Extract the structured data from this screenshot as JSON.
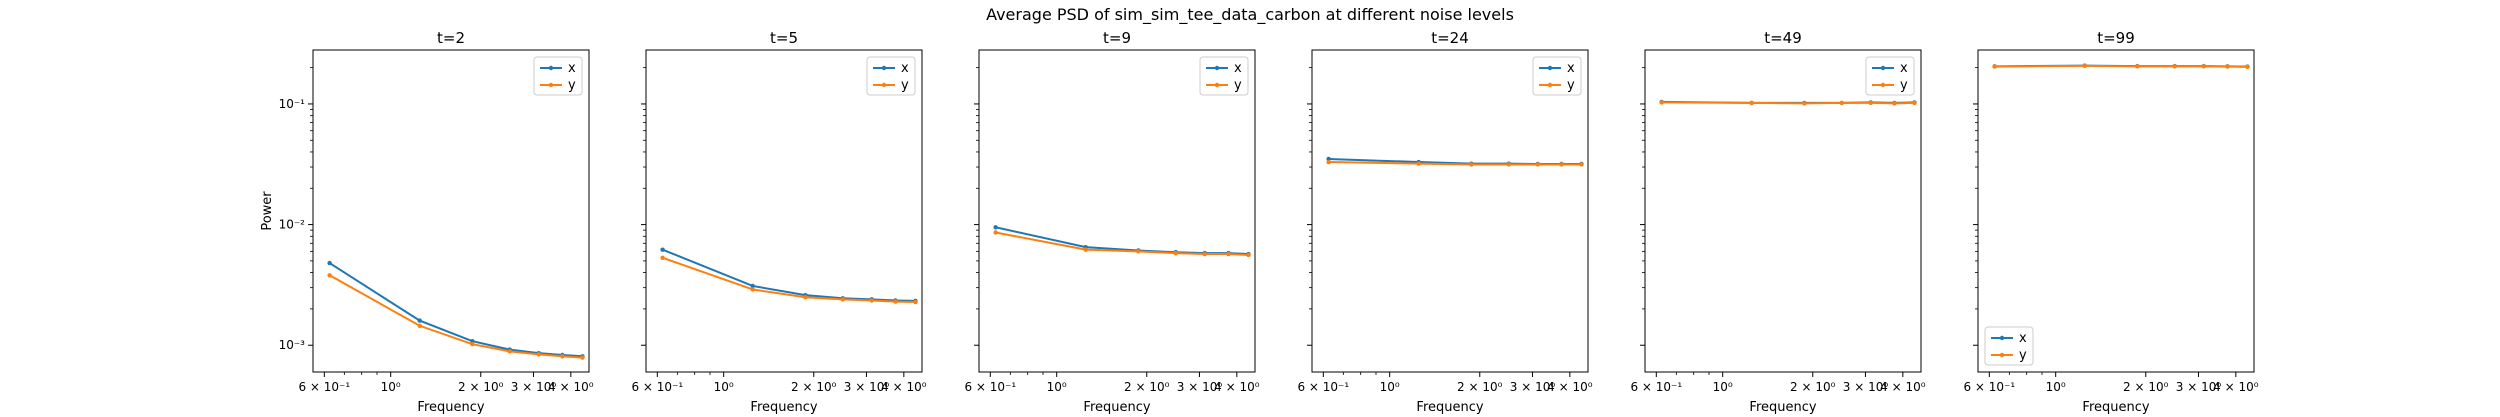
{
  "suptitle": "Average PSD of sim_sim_tee_data_carbon at different noise levels",
  "colors": {
    "x": "#1f77b4",
    "y": "#ff7f0e"
  },
  "chart_data": [
    {
      "type": "line",
      "title": "t=2",
      "xlabel": "Frequency",
      "ylabel": "Power",
      "xscale": "log",
      "yscale": "log",
      "xlim": [
        0.55,
        4.6
      ],
      "ylim": [
        0.0006,
        0.28
      ],
      "x": [
        0.625,
        1.25,
        1.875,
        2.5,
        3.125,
        3.75,
        4.375
      ],
      "series": [
        {
          "name": "x",
          "values": [
            0.0048,
            0.0016,
            0.00108,
            0.00092,
            0.00086,
            0.00083,
            0.00081
          ]
        },
        {
          "name": "y",
          "values": [
            0.0038,
            0.00145,
            0.00102,
            0.00089,
            0.00084,
            0.00081,
            0.00079
          ]
        }
      ],
      "legend": "upper right"
    },
    {
      "type": "line",
      "title": "t=5",
      "xlabel": "Frequency",
      "ylabel": "",
      "xscale": "log",
      "yscale": "log",
      "xlim": [
        0.55,
        4.6
      ],
      "ylim": [
        0.0006,
        0.28
      ],
      "x": [
        0.625,
        1.25,
        1.875,
        2.5,
        3.125,
        3.75,
        4.375
      ],
      "series": [
        {
          "name": "x",
          "values": [
            0.0062,
            0.0031,
            0.0026,
            0.00245,
            0.0024,
            0.00235,
            0.00233
          ]
        },
        {
          "name": "y",
          "values": [
            0.0053,
            0.0029,
            0.0025,
            0.0024,
            0.00235,
            0.0023,
            0.00228
          ]
        }
      ],
      "legend": "upper right"
    },
    {
      "type": "line",
      "title": "t=9",
      "xlabel": "Frequency",
      "ylabel": "",
      "xscale": "log",
      "yscale": "log",
      "xlim": [
        0.55,
        4.6
      ],
      "ylim": [
        0.0006,
        0.28
      ],
      "x": [
        0.625,
        1.25,
        1.875,
        2.5,
        3.125,
        3.75,
        4.375
      ],
      "series": [
        {
          "name": "x",
          "values": [
            0.0095,
            0.0065,
            0.0061,
            0.0059,
            0.0058,
            0.0058,
            0.0057
          ]
        },
        {
          "name": "y",
          "values": [
            0.0086,
            0.0062,
            0.006,
            0.0058,
            0.0057,
            0.0057,
            0.0056
          ]
        }
      ],
      "legend": "upper right"
    },
    {
      "type": "line",
      "title": "t=24",
      "xlabel": "Frequency",
      "ylabel": "",
      "xscale": "log",
      "yscale": "log",
      "xlim": [
        0.55,
        4.6
      ],
      "ylim": [
        0.0006,
        0.28
      ],
      "x": [
        0.625,
        1.25,
        1.875,
        2.5,
        3.125,
        3.75,
        4.375
      ],
      "series": [
        {
          "name": "x",
          "values": [
            0.035,
            0.033,
            0.032,
            0.032,
            0.0318,
            0.0318,
            0.0318
          ]
        },
        {
          "name": "y",
          "values": [
            0.033,
            0.032,
            0.0315,
            0.0315,
            0.0315,
            0.0315,
            0.0315
          ]
        }
      ],
      "legend": "upper right"
    },
    {
      "type": "line",
      "title": "t=49",
      "xlabel": "Frequency",
      "ylabel": "",
      "xscale": "log",
      "yscale": "log",
      "xlim": [
        0.55,
        4.6
      ],
      "ylim": [
        0.0006,
        0.28
      ],
      "x": [
        0.625,
        1.25,
        1.875,
        2.5,
        3.125,
        3.75,
        4.375
      ],
      "series": [
        {
          "name": "x",
          "values": [
            0.104,
            0.102,
            0.102,
            0.102,
            0.103,
            0.102,
            0.103
          ]
        },
        {
          "name": "y",
          "values": [
            0.103,
            0.102,
            0.101,
            0.102,
            0.102,
            0.101,
            0.102
          ]
        }
      ],
      "legend": "upper right"
    },
    {
      "type": "line",
      "title": "t=99",
      "xlabel": "Frequency",
      "ylabel": "",
      "xscale": "log",
      "yscale": "log",
      "xlim": [
        0.55,
        4.6
      ],
      "ylim": [
        0.0006,
        0.28
      ],
      "x": [
        0.625,
        1.25,
        1.875,
        2.5,
        3.125,
        3.75,
        4.375
      ],
      "series": [
        {
          "name": "x",
          "values": [
            0.205,
            0.208,
            0.206,
            0.206,
            0.206,
            0.205,
            0.204
          ]
        },
        {
          "name": "y",
          "values": [
            0.204,
            0.207,
            0.205,
            0.205,
            0.205,
            0.204,
            0.203
          ]
        }
      ],
      "legend": "lower left"
    }
  ],
  "axes": {
    "x_ticks": [
      {
        "value": 0.6,
        "label": "6 × 10⁻¹"
      },
      {
        "value": 1,
        "label": "10⁰"
      },
      {
        "value": 2,
        "label": "2 × 10⁰"
      },
      {
        "value": 3,
        "label": "3 × 10⁰"
      },
      {
        "value": 4,
        "label": "4 × 10⁰"
      }
    ],
    "y_ticks": [
      {
        "value": 0.001,
        "label": "10⁻³"
      },
      {
        "value": 0.01,
        "label": "10⁻²"
      },
      {
        "value": 0.1,
        "label": "10⁻¹"
      }
    ]
  }
}
